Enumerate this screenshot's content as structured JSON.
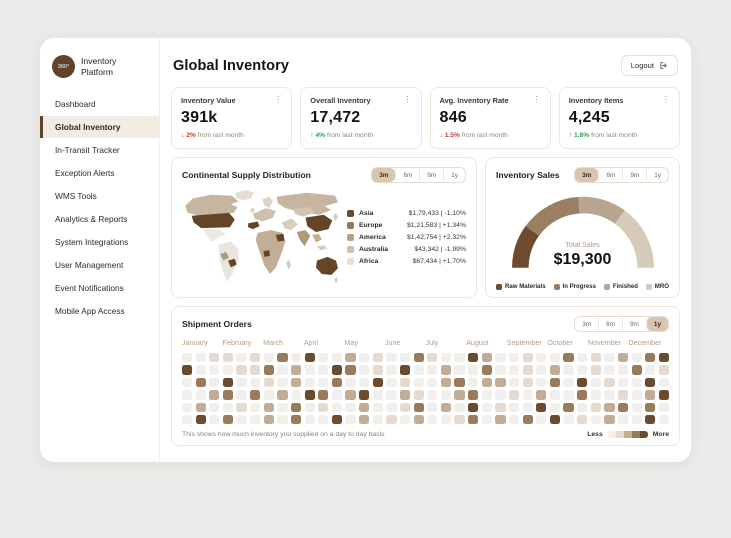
{
  "app": {
    "badge": "360°",
    "name_line1": "Inventory",
    "name_line2": "Platform"
  },
  "sidebar": {
    "items": [
      {
        "label": "Dashboard",
        "active": false
      },
      {
        "label": "Global Inventory",
        "active": true
      },
      {
        "label": "In-Transit Tracker",
        "active": false
      },
      {
        "label": "Exception Alerts",
        "active": false
      },
      {
        "label": "WMS Tools",
        "active": false
      },
      {
        "label": "Analytics & Reports",
        "active": false
      },
      {
        "label": "System Integrations",
        "active": false
      },
      {
        "label": "User Management",
        "active": false
      },
      {
        "label": "Event Notifications",
        "active": false
      },
      {
        "label": "Mobile App Access",
        "active": false
      }
    ]
  },
  "header": {
    "title": "Global Inventory",
    "logout": "Logout"
  },
  "colors": {
    "accent": "#5f432c",
    "active_range_bg": "#d8c6b1",
    "positive": "#2e9e57",
    "negative": "#c43d2b"
  },
  "stats": [
    {
      "title": "Inventory Value",
      "value": "391k",
      "delta": "2%",
      "direction": "down",
      "note": "from last month"
    },
    {
      "title": "Overall Inventory",
      "value": "17,472",
      "delta": "4%",
      "direction": "up",
      "note": "from last month"
    },
    {
      "title": "Avg. Inventory Rate",
      "value": "846",
      "delta": "1.5%",
      "direction": "down",
      "note": "from last month"
    },
    {
      "title": "Inventory Items",
      "value": "4,245",
      "delta": "1.8%",
      "direction": "up",
      "note": "from last month"
    }
  ],
  "distribution": {
    "title": "Continental Supply Distribution",
    "ranges": [
      "3m",
      "6m",
      "9m",
      "1y"
    ],
    "active_range": "3m",
    "legend": [
      {
        "name": "Asia",
        "value": "$1,79,433 | -1.10%",
        "color": "#6b4a2e"
      },
      {
        "name": "Europe",
        "value": "$1,21,583 | +1.34%",
        "color": "#97785c"
      },
      {
        "name": "America",
        "value": "$1,42,754 | +2.32%",
        "color": "#b4a28c"
      },
      {
        "name": "Australia",
        "value": "$43,342 | -1.99%",
        "color": "#cdbfae"
      },
      {
        "name": "Africa",
        "value": "$67,434 | +1.70%",
        "color": "#e8e0d6"
      }
    ]
  },
  "sales": {
    "title": "Inventory Sales",
    "ranges": [
      "3m",
      "6m",
      "9m",
      "1y"
    ],
    "active_range": "3m",
    "total_label": "Total Sales",
    "total_value": "$19,300",
    "segments": [
      {
        "name": "Raw Materials",
        "pct": 20,
        "color": "#6e4b2f"
      },
      {
        "name": "In Progress",
        "pct": 28,
        "color": "#9b7f63"
      },
      {
        "name": "Finished",
        "pct": 22,
        "color": "#b7a58f"
      },
      {
        "name": "MRO",
        "pct": 30,
        "color": "#d6cabb"
      }
    ]
  },
  "shipments": {
    "title": "Shipment Orders",
    "ranges": [
      "3m",
      "6m",
      "9m",
      "1y"
    ],
    "active_range": "1y",
    "months": [
      "January",
      "February",
      "March",
      "April",
      "May",
      "June",
      "July",
      "August",
      "September",
      "October",
      "November",
      "December"
    ],
    "heatmap": {
      "level_colors": [
        "#f1efec",
        "#e4dacf",
        "#c3ac96",
        "#997a5b",
        "#6b4a2e"
      ],
      "rows": [
        "001101030400201003100420010030102034",
        "400011302004301040020030010200100301",
        "030400102003004010023022010304010040",
        "002303020430240021002300102003001024",
        "020010203010020013020401004030123030",
        "040300203004020102001302030401020040"
      ]
    },
    "footnote": "This shows how much inventory you supplied on a day to day basis",
    "less_label": "Less",
    "more_label": "More"
  }
}
